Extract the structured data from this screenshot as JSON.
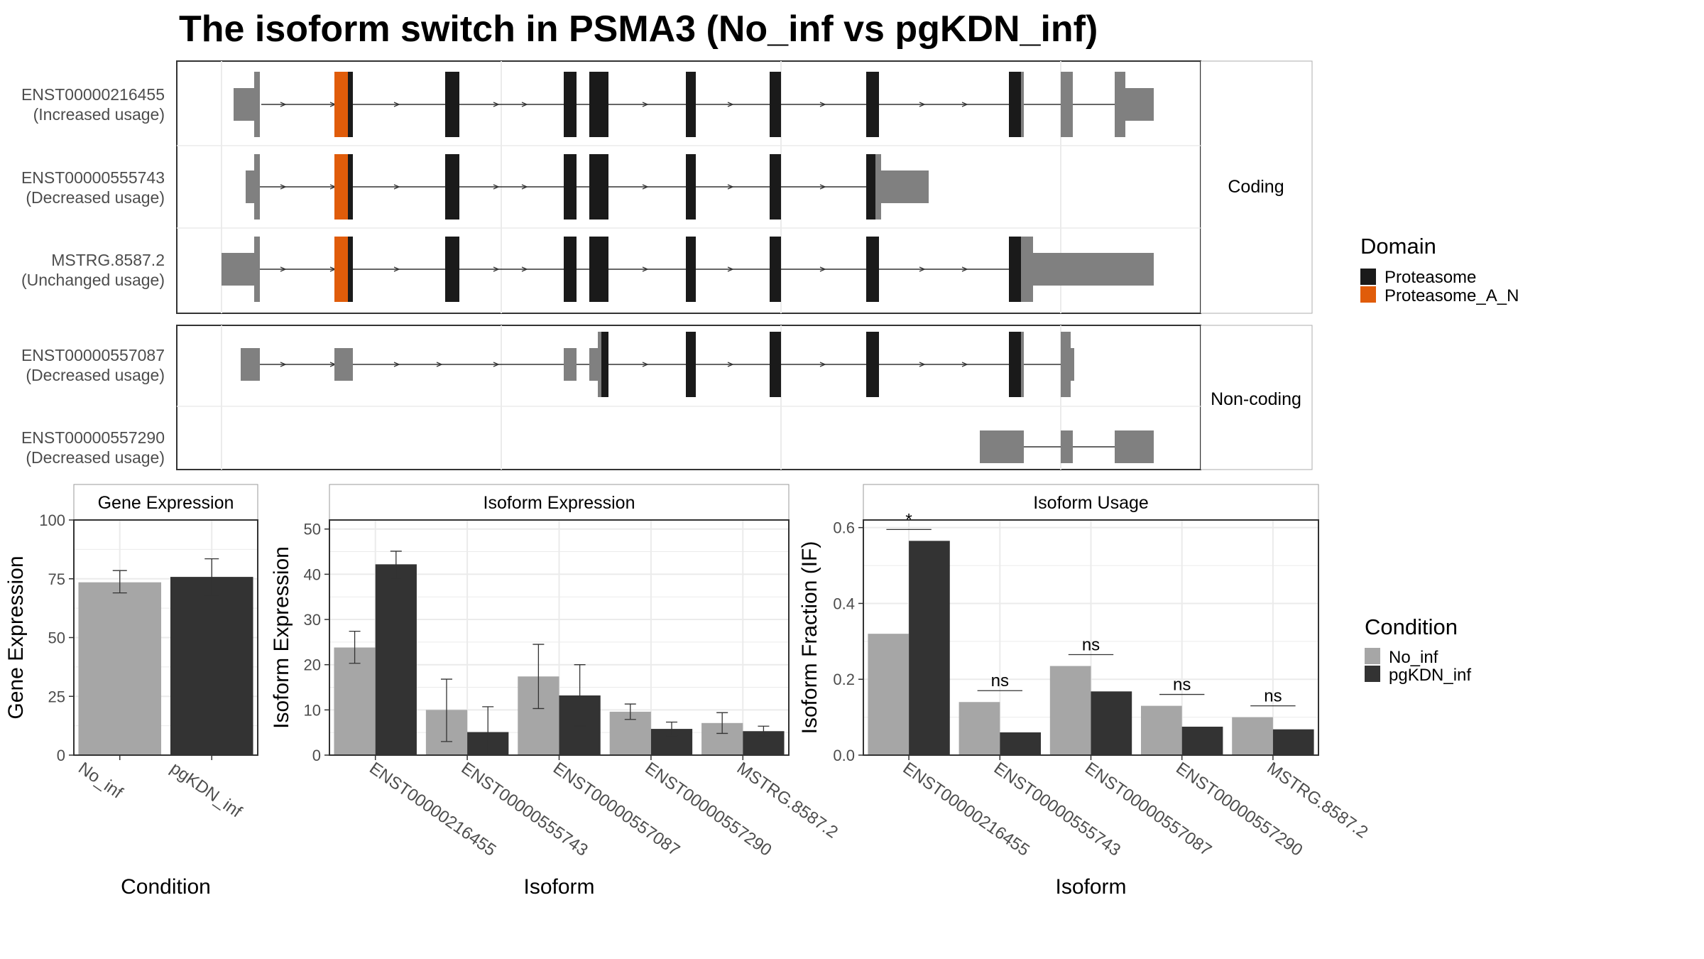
{
  "title": "The isoform switch in PSMA3 (No_inf vs pgKDN_inf)",
  "colors": {
    "proteasome": "#1a1a1a",
    "proteasome_a_n": "#e05c0a",
    "utr": "#808080",
    "no_inf": "#a6a6a6",
    "pgkdn_inf": "#333333",
    "grid": "#ebebeb",
    "strip_bg": "#ffffff",
    "border": "#333333"
  },
  "structure": {
    "groups": [
      {
        "label": "Coding",
        "isoforms": [
          {
            "id": "ENST00000216455",
            "usage": "(Increased usage)"
          },
          {
            "id": "ENST00000555743",
            "usage": "(Decreased usage)"
          },
          {
            "id": "MSTRG.8587.2",
            "usage": "(Unchanged usage)"
          }
        ]
      },
      {
        "label": "Non-coding",
        "isoforms": [
          {
            "id": "ENST00000557087",
            "usage": "(Decreased usage)"
          },
          {
            "id": "ENST00000557290",
            "usage": "(Decreased usage)"
          }
        ]
      }
    ]
  },
  "legends": {
    "domain": {
      "title": "Domain",
      "items": [
        {
          "label": "Proteasome",
          "color": "#1a1a1a"
        },
        {
          "label": "Proteasome_A_N",
          "color": "#e05c0a"
        }
      ]
    },
    "condition": {
      "title": "Condition",
      "items": [
        {
          "label": "No_inf",
          "color": "#a6a6a6"
        },
        {
          "label": "pgKDN_inf",
          "color": "#333333"
        }
      ]
    }
  },
  "chart_data": [
    {
      "type": "bar",
      "title": "Gene Expression",
      "xlabel": "Condition",
      "ylabel": "Gene Expression",
      "ylim": [
        0,
        100
      ],
      "yticks": [
        0,
        25,
        50,
        75,
        100
      ],
      "categories": [
        "No_inf",
        "pgKDN_inf"
      ],
      "values": [
        73.5,
        75.8
      ],
      "errors": [
        [
          69.0,
          78.5
        ],
        [
          68.0,
          83.5
        ]
      ],
      "grid": true
    },
    {
      "type": "bar",
      "title": "Isoform Expression",
      "xlabel": "Isoform",
      "ylabel": "Isoform Expression",
      "ylim": [
        0,
        52
      ],
      "yticks": [
        0,
        10,
        20,
        30,
        40,
        50
      ],
      "categories": [
        "ENST00000216455",
        "ENST00000555743",
        "ENST00000557087",
        "ENST00000557290",
        "MSTRG.8587.2"
      ],
      "series": [
        {
          "name": "No_inf",
          "values": [
            23.8,
            10.0,
            17.4,
            9.6,
            7.1
          ],
          "errors": [
            [
              20.3,
              27.4
            ],
            [
              3.0,
              16.8
            ],
            [
              10.3,
              24.5
            ],
            [
              7.9,
              11.3
            ],
            [
              4.8,
              9.4
            ]
          ]
        },
        {
          "name": "pgKDN_inf",
          "values": [
            42.2,
            5.1,
            13.2,
            5.8,
            5.3
          ],
          "errors": [
            [
              39.1,
              45.1
            ],
            [
              0.0,
              10.7
            ],
            [
              6.4,
              20.0
            ],
            [
              4.3,
              7.3
            ],
            [
              4.2,
              6.4
            ]
          ]
        }
      ],
      "grid": true
    },
    {
      "type": "bar",
      "title": "Isoform Usage",
      "xlabel": "Isoform",
      "ylabel": "Isoform Fraction (IF)",
      "ylim": [
        0,
        0.62
      ],
      "yticks": [
        0.0,
        0.2,
        0.4,
        0.6
      ],
      "ytick_labels": [
        "0.0",
        "0.2",
        "0.4",
        "0.6"
      ],
      "categories": [
        "ENST00000216455",
        "ENST00000555743",
        "ENST00000557087",
        "ENST00000557290",
        "MSTRG.8587.2"
      ],
      "series": [
        {
          "name": "No_inf",
          "values": [
            0.32,
            0.14,
            0.235,
            0.13,
            0.1
          ]
        },
        {
          "name": "pgKDN_inf",
          "values": [
            0.565,
            0.06,
            0.168,
            0.075,
            0.068
          ]
        }
      ],
      "significance": [
        "*",
        "ns",
        "ns",
        "ns",
        "ns"
      ],
      "sig_y": [
        0.595,
        0.17,
        0.265,
        0.16,
        0.13
      ],
      "grid": true
    }
  ]
}
